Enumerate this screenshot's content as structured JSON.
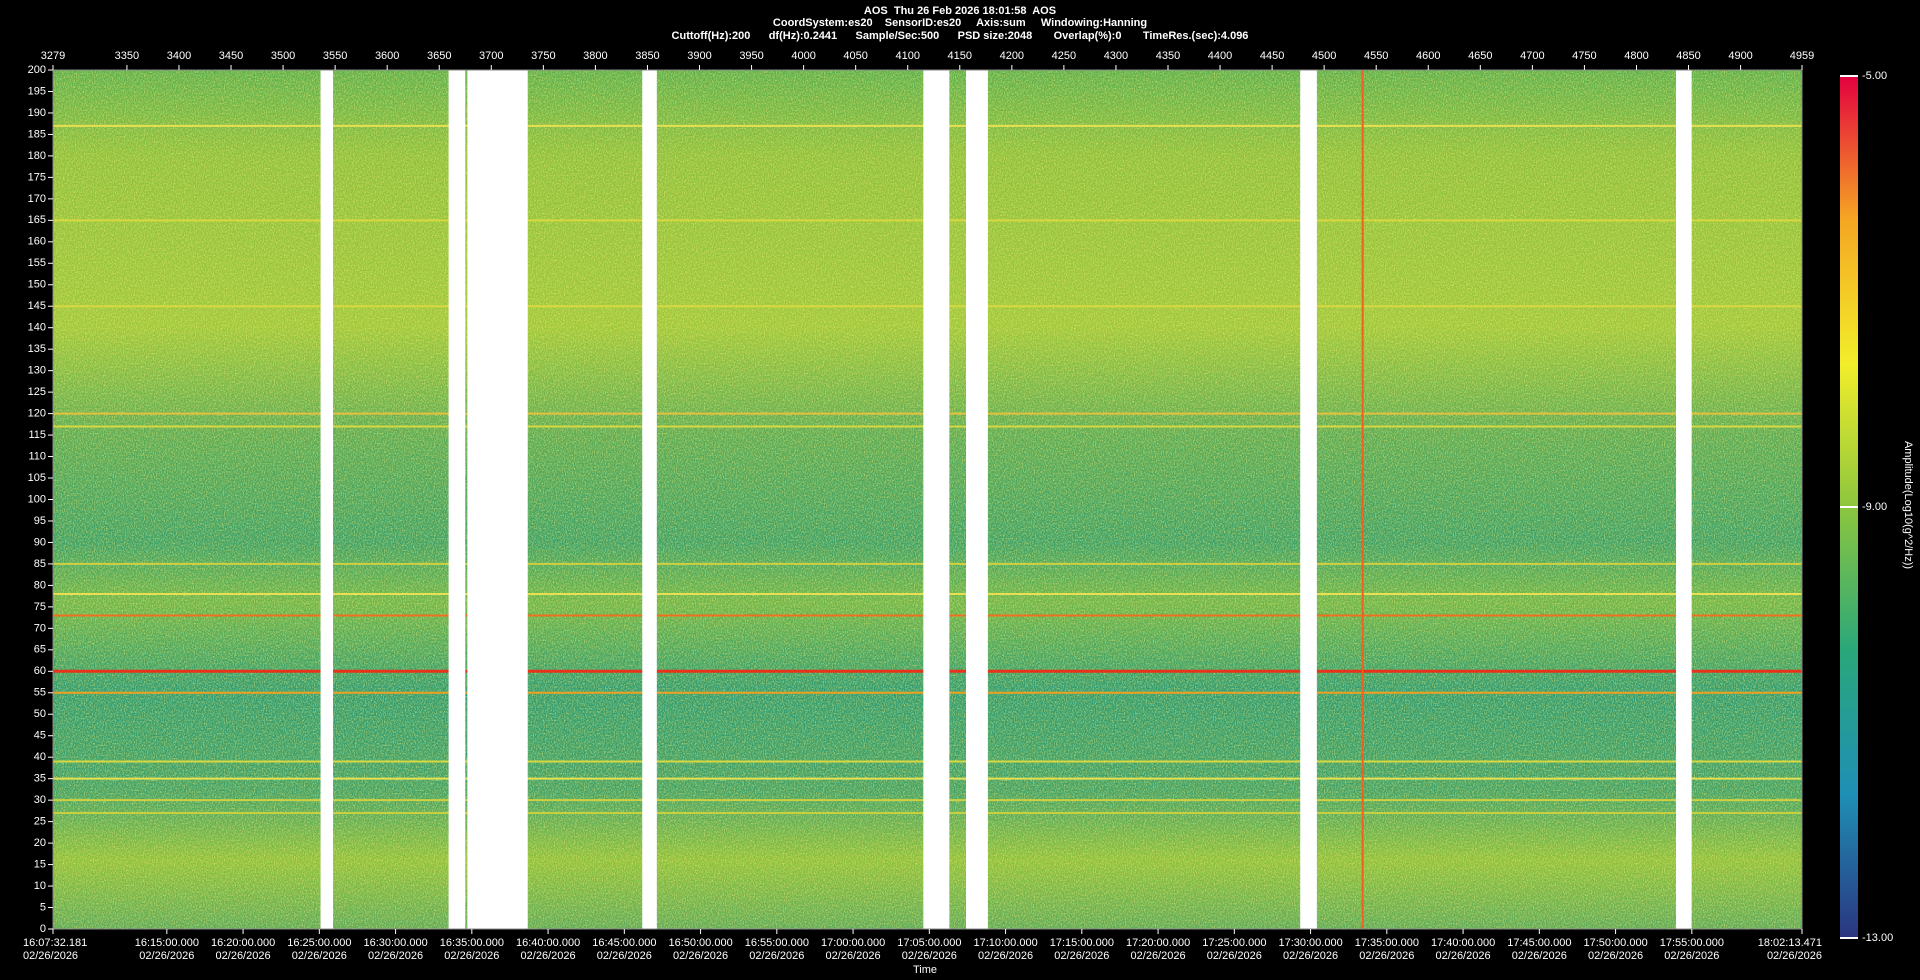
{
  "chart_data": {
    "type": "spectrogram",
    "title": "AOS  Thu 26 Feb 2026 18:01:58  AOS",
    "subtitle": "CoordSystem:es20    SensorID:es20     Axis:sum     Windowing:Hanning",
    "subtitle2": "Cuttoff(Hz):200      df(Hz):0.2441      Sample/Sec:500      PSD size:2048       Overlap(%):0       TimeRes.(sec):4.096",
    "x_label": "Time",
    "colorbar_label": "Amplitude(Log10(g^2/Hz))",
    "xlim": [
      3279,
      4959
    ],
    "xticks": [
      3279,
      3350,
      3400,
      3450,
      3500,
      3550,
      3600,
      3650,
      3700,
      3750,
      3800,
      3850,
      3900,
      3950,
      4000,
      4050,
      4100,
      4150,
      4200,
      4250,
      4300,
      4350,
      4400,
      4450,
      4500,
      4550,
      4600,
      4650,
      4700,
      4750,
      4800,
      4850,
      4900,
      4959
    ],
    "timelim": [
      58052.181,
      64933.471
    ],
    "timeticks": [
      {
        "value": 58052.181,
        "label": "16:07:32.181"
      },
      {
        "value": 58500,
        "label": "16:15:00.000"
      },
      {
        "value": 58800,
        "label": "16:20:00.000"
      },
      {
        "value": 59100,
        "label": "16:25:00.000"
      },
      {
        "value": 59400,
        "label": "16:30:00.000"
      },
      {
        "value": 59700,
        "label": "16:35:00.000"
      },
      {
        "value": 60000,
        "label": "16:40:00.000"
      },
      {
        "value": 60300,
        "label": "16:45:00.000"
      },
      {
        "value": 60600,
        "label": "16:50:00.000"
      },
      {
        "value": 60900,
        "label": "16:55:00.000"
      },
      {
        "value": 61200,
        "label": "17:00:00.000"
      },
      {
        "value": 61500,
        "label": "17:05:00.000"
      },
      {
        "value": 61800,
        "label": "17:10:00.000"
      },
      {
        "value": 62100,
        "label": "17:15:00.000"
      },
      {
        "value": 62400,
        "label": "17:20:00.000"
      },
      {
        "value": 62700,
        "label": "17:25:00.000"
      },
      {
        "value": 63000,
        "label": "17:30:00.000"
      },
      {
        "value": 63300,
        "label": "17:35:00.000"
      },
      {
        "value": 63600,
        "label": "17:40:00.000"
      },
      {
        "value": 63900,
        "label": "17:45:00.000"
      },
      {
        "value": 64200,
        "label": "17:50:00.000"
      },
      {
        "value": 64500,
        "label": "17:55:00.000"
      },
      {
        "value": 64933.471,
        "label": "18:02:13.471"
      }
    ],
    "timetick_dates": [
      "02/26/2026",
      "02/26/2026",
      "02/26/2026",
      "02/26/2026",
      "02/26/2026",
      "02/26/2026",
      "02/26/2026",
      "02/26/2026",
      "02/26/2026",
      "02/26/2026",
      "02/26/2026",
      "02/26/2026",
      "02/26/2026",
      "02/26/2026",
      "02/26/2026",
      "02/26/2026",
      "02/26/2026",
      "02/26/2026",
      "02/26/2026",
      "02/26/2026",
      "02/26/2026",
      "02/26/2026",
      "02/26/2026"
    ],
    "ylim": [
      0,
      200
    ],
    "yticks": [
      0,
      5,
      10,
      15,
      20,
      25,
      30,
      35,
      40,
      45,
      50,
      55,
      60,
      65,
      70,
      75,
      80,
      85,
      90,
      95,
      100,
      105,
      110,
      115,
      120,
      125,
      130,
      135,
      140,
      145,
      150,
      155,
      160,
      165,
      170,
      175,
      180,
      185,
      190,
      195,
      200
    ],
    "clim": [
      -13,
      -5
    ],
    "cticks": [
      {
        "value": -5,
        "label": "-5.00"
      },
      {
        "value": -9,
        "label": "-9.00"
      },
      {
        "value": -13,
        "label": "-13.00"
      }
    ],
    "colormap": [
      "#2a3580",
      "#1f8fb5",
      "#2aa77a",
      "#8cc63e",
      "#f2ee2a",
      "#f5a623",
      "#e3003f"
    ],
    "gaps": [
      [
        3536,
        3548
      ],
      [
        3659,
        3675
      ],
      [
        3677,
        3735
      ],
      [
        3845,
        3859
      ],
      [
        4115,
        4140
      ],
      [
        4156,
        4177
      ],
      [
        4477,
        4493
      ],
      [
        4838,
        4853
      ]
    ],
    "lines": [
      {
        "freq": 60,
        "color": "#e8321a"
      },
      {
        "freq": 73,
        "color": "#f07020"
      },
      {
        "freq": 55,
        "color": "#f0a020"
      },
      {
        "freq": 187,
        "color": "#e8e050"
      },
      {
        "freq": 165,
        "color": "#d8d840"
      },
      {
        "freq": 145,
        "color": "#d8d840"
      },
      {
        "freq": 120,
        "color": "#e8c040"
      },
      {
        "freq": 117,
        "color": "#d8d840"
      },
      {
        "freq": 85,
        "color": "#d0d040"
      },
      {
        "freq": 78,
        "color": "#e8e050"
      },
      {
        "freq": 39,
        "color": "#d8d840"
      },
      {
        "freq": 35,
        "color": "#e8e050"
      },
      {
        "freq": 30,
        "color": "#d0d040"
      },
      {
        "freq": 27,
        "color": "#c8d040"
      }
    ],
    "events": [
      {
        "x": 4537,
        "color": "#f06020"
      }
    ]
  }
}
